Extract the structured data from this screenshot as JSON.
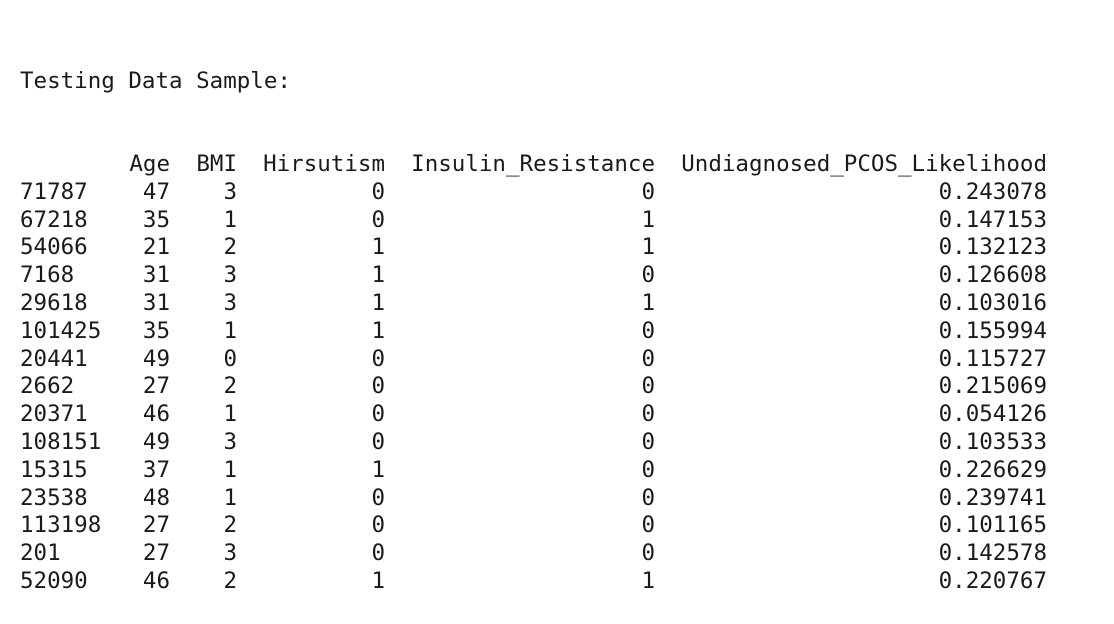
{
  "title": "Testing Data Sample:",
  "columns": {
    "age": "Age",
    "bmi": "BMI",
    "hirsutism": "Hirsutism",
    "insulin_resistance": "Insulin_Resistance",
    "pcos_likelihood": "Undiagnosed_PCOS_Likelihood"
  },
  "rows": [
    {
      "index": "71787",
      "age": "47",
      "bmi": "3",
      "hirsutism": "0",
      "insulin_resistance": "0",
      "pcos_likelihood": "0.243078"
    },
    {
      "index": "67218",
      "age": "35",
      "bmi": "1",
      "hirsutism": "0",
      "insulin_resistance": "1",
      "pcos_likelihood": "0.147153"
    },
    {
      "index": "54066",
      "age": "21",
      "bmi": "2",
      "hirsutism": "1",
      "insulin_resistance": "1",
      "pcos_likelihood": "0.132123"
    },
    {
      "index": "7168",
      "age": "31",
      "bmi": "3",
      "hirsutism": "1",
      "insulin_resistance": "0",
      "pcos_likelihood": "0.126608"
    },
    {
      "index": "29618",
      "age": "31",
      "bmi": "3",
      "hirsutism": "1",
      "insulin_resistance": "1",
      "pcos_likelihood": "0.103016"
    },
    {
      "index": "101425",
      "age": "35",
      "bmi": "1",
      "hirsutism": "1",
      "insulin_resistance": "0",
      "pcos_likelihood": "0.155994"
    },
    {
      "index": "20441",
      "age": "49",
      "bmi": "0",
      "hirsutism": "0",
      "insulin_resistance": "0",
      "pcos_likelihood": "0.115727"
    },
    {
      "index": "2662",
      "age": "27",
      "bmi": "2",
      "hirsutism": "0",
      "insulin_resistance": "0",
      "pcos_likelihood": "0.215069"
    },
    {
      "index": "20371",
      "age": "46",
      "bmi": "1",
      "hirsutism": "0",
      "insulin_resistance": "0",
      "pcos_likelihood": "0.054126"
    },
    {
      "index": "108151",
      "age": "49",
      "bmi": "3",
      "hirsutism": "0",
      "insulin_resistance": "0",
      "pcos_likelihood": "0.103533"
    },
    {
      "index": "15315",
      "age": "37",
      "bmi": "1",
      "hirsutism": "1",
      "insulin_resistance": "0",
      "pcos_likelihood": "0.226629"
    },
    {
      "index": "23538",
      "age": "48",
      "bmi": "1",
      "hirsutism": "0",
      "insulin_resistance": "0",
      "pcos_likelihood": "0.239741"
    },
    {
      "index": "113198",
      "age": "27",
      "bmi": "2",
      "hirsutism": "0",
      "insulin_resistance": "0",
      "pcos_likelihood": "0.101165"
    },
    {
      "index": "201",
      "age": "27",
      "bmi": "3",
      "hirsutism": "0",
      "insulin_resistance": "0",
      "pcos_likelihood": "0.142578"
    },
    {
      "index": "52090",
      "age": "46",
      "bmi": "2",
      "hirsutism": "1",
      "insulin_resistance": "1",
      "pcos_likelihood": "0.220767"
    }
  ]
}
